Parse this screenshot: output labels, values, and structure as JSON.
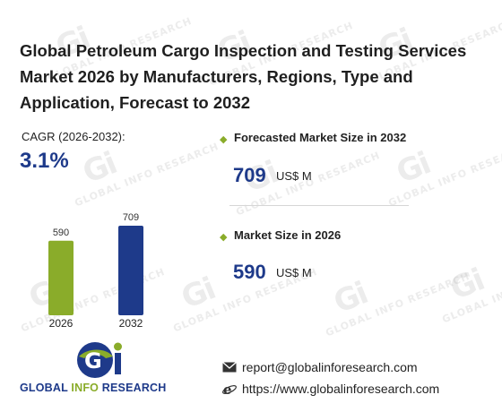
{
  "title": "Global Petroleum Cargo Inspection and Testing Services Market 2026 by Manufacturers, Regions, Type and Application, Forecast to 2032",
  "cagr": {
    "label": "CAGR (2026-2032):",
    "value": "3.1%"
  },
  "kpis": [
    {
      "label": "Forecasted Market Size in 2032",
      "value": "709",
      "unit": "US$ M"
    },
    {
      "label": "Market Size in 2026",
      "value": "590",
      "unit": "US$ M"
    }
  ],
  "chart_data": {
    "type": "bar",
    "categories": [
      "2026",
      "2032"
    ],
    "values": [
      590,
      709
    ],
    "colors": [
      "#8aac2a",
      "#1e3a8a"
    ],
    "title": "",
    "xlabel": "",
    "ylabel": "",
    "ylim": [
      0,
      709
    ],
    "grid": false,
    "legend": "none"
  },
  "logo": {
    "word1": "GLOBAL ",
    "word2": "INFO",
    "word3": " RESEARCH"
  },
  "contact": {
    "email": "report@globalinforesearch.com",
    "website": "https://www.globalinforesearch.com"
  },
  "watermark_text": "GLOBAL INFO RESEARCH",
  "colors": {
    "accent_green": "#8aac2a",
    "brand_blue": "#1e3a8a"
  },
  "icons": {
    "email": "envelope-icon",
    "web": "internet-explorer-icon",
    "bullet": "diamond-bullet-icon"
  }
}
